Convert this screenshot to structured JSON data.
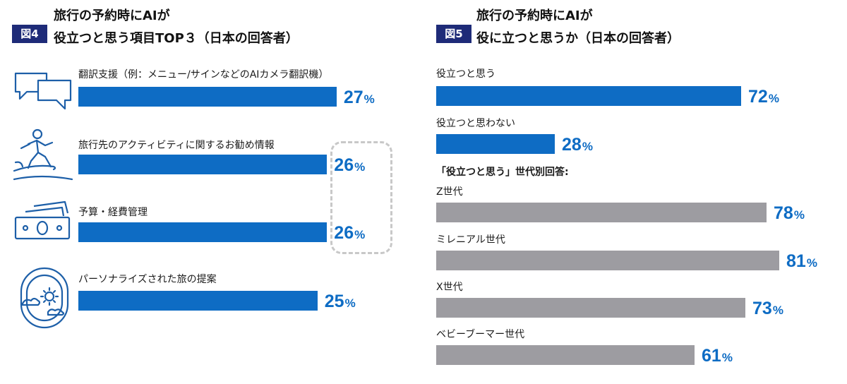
{
  "colors": {
    "blue": "#0e6cc4",
    "gray": "#9d9ca1",
    "badge": "#1e2b78",
    "dash": "#c8c8c8"
  },
  "chart_data": [
    {
      "type": "bar",
      "orientation": "horizontal",
      "badge": "図4",
      "title_line1": "旅行の予約時にAIが",
      "title_line2": "役立つと思う項目TOP３（日本の回答者）",
      "max": 100,
      "unit": "%",
      "items": [
        {
          "label": "翻訳支援（例：メニュー/サインなどのAIカメラ翻訳機）",
          "value": 27,
          "icon": "speech-bubbles-icon"
        },
        {
          "label": "旅行先のアクティビティに関するお勧め情報",
          "value": 26,
          "icon": "surfer-icon"
        },
        {
          "label": "予算・経費管理",
          "value": 26,
          "icon": "banknotes-icon"
        },
        {
          "label": "パーソナライズされた旅の提案",
          "value": 25,
          "icon": "airplane-window-icon"
        }
      ]
    },
    {
      "type": "bar",
      "orientation": "horizontal",
      "badge": "図5",
      "title_line1": "旅行の予約時にAIが",
      "title_line2": "役に立つと思うか（日本の回答者）",
      "max": 100,
      "unit": "%",
      "items": [
        {
          "label": "役立つと思う",
          "value": 72,
          "color": "blue"
        },
        {
          "label": "役立つと思わない",
          "value": 28,
          "color": "blue"
        }
      ],
      "subheading": "「役立つと思う」世代別回答:",
      "generations": [
        {
          "label": "Z世代",
          "value": 78,
          "color": "gray"
        },
        {
          "label": "ミレニアル世代",
          "value": 81,
          "color": "gray"
        },
        {
          "label": "X世代",
          "value": 73,
          "color": "gray"
        },
        {
          "label": "ベビーブーマー世代",
          "value": 61,
          "color": "gray"
        }
      ]
    }
  ]
}
